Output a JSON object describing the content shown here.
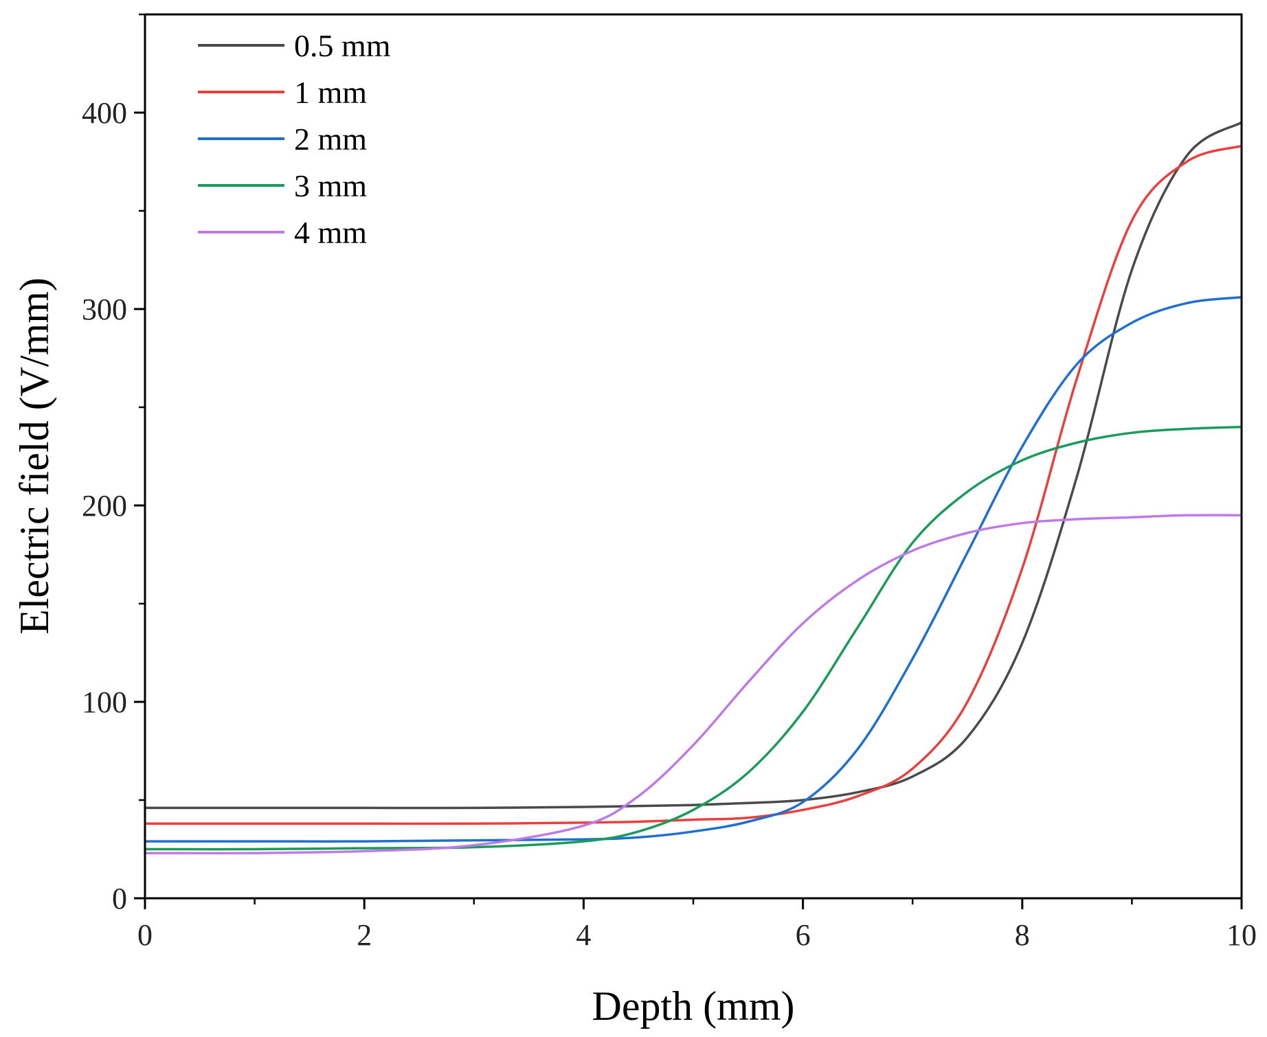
{
  "chart_data": {
    "type": "line",
    "title": "",
    "xlabel": "Depth (mm)",
    "ylabel": "Electric field (V/mm)",
    "xlim": [
      0,
      10
    ],
    "ylim": [
      0,
      450
    ],
    "xticks": [
      0,
      2,
      4,
      6,
      8,
      10
    ],
    "yticks": [
      0,
      100,
      200,
      300,
      400
    ],
    "xtick_labels": [
      "0",
      "2",
      "4",
      "6",
      "8",
      "10"
    ],
    "ytick_labels": [
      "0",
      "100",
      "200",
      "300",
      "400"
    ],
    "grid": false,
    "legend_position": "top-left",
    "x": [
      0,
      1,
      2,
      3,
      4,
      4.5,
      5,
      5.5,
      6,
      6.5,
      7,
      7.5,
      8,
      8.5,
      9,
      9.5,
      10
    ],
    "series": [
      {
        "name": "0.5 mm",
        "color": "#4a4a4a",
        "values": [
          46,
          46,
          46,
          46,
          46.5,
          47,
          47.5,
          48.5,
          50,
          54,
          62,
          82,
          130,
          215,
          320,
          378,
          395
        ]
      },
      {
        "name": "1 mm",
        "color": "#e8403f",
        "values": [
          38,
          38,
          38,
          38,
          38.5,
          39,
          40,
          41,
          45,
          52,
          66,
          100,
          168,
          265,
          345,
          375,
          383
        ]
      },
      {
        "name": "2 mm",
        "color": "#1f6fd1",
        "values": [
          29,
          29,
          29,
          29.5,
          30,
          31,
          34,
          39,
          49,
          76,
          122,
          176,
          230,
          272,
          293,
          303,
          306
        ]
      },
      {
        "name": "3 mm",
        "color": "#1a9a5c",
        "values": [
          25,
          25,
          25.5,
          26,
          29,
          34,
          45,
          64,
          95,
          138,
          181,
          207,
          223,
          232,
          237,
          239,
          240
        ]
      },
      {
        "name": "4 mm",
        "color": "#bf7ae6",
        "values": [
          23,
          23,
          24,
          27,
          37,
          52,
          78,
          110,
          140,
          162,
          177,
          186,
          191,
          193,
          194,
          195,
          195
        ]
      }
    ]
  }
}
